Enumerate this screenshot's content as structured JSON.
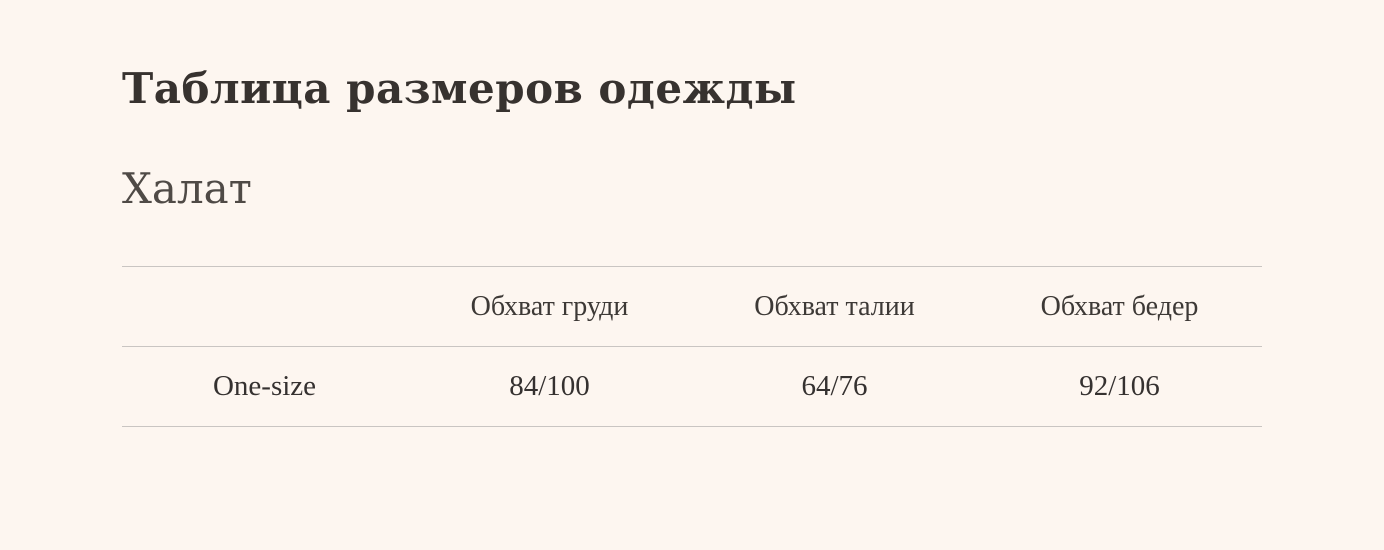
{
  "page": {
    "title": "Таблица размеров одежды",
    "subtitle": "Халат"
  },
  "size_table": {
    "columns": [
      "",
      "Обхват груди",
      "Обхват талии",
      "Обхват бедер"
    ],
    "rows": [
      {
        "size": "One-size",
        "chest": "84/100",
        "waist": "64/76",
        "hips": "92/106"
      }
    ]
  },
  "colors": {
    "background": "#fdf6f0",
    "title_text": "#37322f",
    "subtitle_text": "#4f4a46",
    "table_text": "#353130",
    "table_border": "#c9c5c2"
  }
}
